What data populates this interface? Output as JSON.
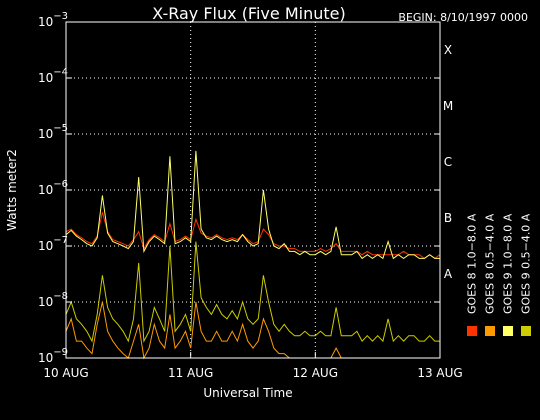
{
  "chart_data": {
    "type": "line",
    "title": "X-Ray Flux (Five Minute)",
    "begin_label": "BEGIN: 8/10/1997 0000",
    "xlabel": "Universal Time",
    "ylabel": "Watts meter2",
    "yscale": "log",
    "ylim": [
      1e-09,
      0.001
    ],
    "xlim_hours": [
      0,
      72
    ],
    "x_ticks": [
      {
        "label": "10 AUG",
        "hour": 0
      },
      {
        "label": "11 AUG",
        "hour": 24
      },
      {
        "label": "12 AUG",
        "hour": 48
      },
      {
        "label": "13 AUG",
        "hour": 72
      }
    ],
    "y_ticks": [
      {
        "base": "10",
        "exp": "−3",
        "value": 0.001
      },
      {
        "base": "10",
        "exp": "−4",
        "value": 0.0001
      },
      {
        "base": "10",
        "exp": "−5",
        "value": 1e-05
      },
      {
        "base": "10",
        "exp": "−6",
        "value": 1e-06
      },
      {
        "base": "10",
        "exp": "−7",
        "value": 1e-07
      },
      {
        "base": "10",
        "exp": "−8",
        "value": 1e-08
      },
      {
        "base": "10",
        "exp": "−9",
        "value": 1e-09
      }
    ],
    "flare_classes": [
      {
        "label": "X",
        "value": 0.0001
      },
      {
        "label": "M",
        "value": 1e-05
      },
      {
        "label": "C",
        "value": 1e-06
      },
      {
        "label": "B",
        "value": 1e-07
      },
      {
        "label": "A",
        "value": 1e-08
      }
    ],
    "grid": "dotted at decades and day boundaries",
    "legend": [
      {
        "label": "GOES 8 1.0−8.0 A",
        "color": "#ff3300"
      },
      {
        "label": "GOES 8 0.5−4.0 A",
        "color": "#ff9900"
      },
      {
        "label": "GOES 9 1.0−8.0 A",
        "color": "#ffff66"
      },
      {
        "label": "GOES 9 0.5−4.0 A",
        "color": "#cccc00"
      }
    ],
    "series": [
      {
        "name": "GOES 8 1.0−8.0 A",
        "color": "#ff3300",
        "x": [
          0,
          1,
          2,
          3,
          4,
          5,
          6,
          7,
          8,
          9,
          10,
          11,
          12,
          13,
          14,
          15,
          16,
          17,
          18,
          19,
          20,
          21,
          22,
          23,
          24,
          25,
          26,
          27,
          28,
          29,
          30,
          31,
          32,
          33,
          34,
          35,
          36,
          37,
          38,
          39,
          40,
          41,
          42,
          43,
          44,
          45,
          46,
          47,
          48,
          49,
          50,
          51,
          52,
          53,
          54,
          55,
          56,
          57,
          58,
          59,
          60,
          61,
          62,
          63,
          64,
          65,
          66,
          67,
          68,
          69,
          70,
          71,
          72
        ],
        "y": [
          1.8e-07,
          2e-07,
          1.6e-07,
          1.4e-07,
          1.2e-07,
          1.1e-07,
          1.5e-07,
          4e-07,
          1.8e-07,
          1.3e-07,
          1.2e-07,
          1.1e-07,
          1e-07,
          1.3e-07,
          1.8e-07,
          9e-08,
          1.3e-07,
          1.6e-07,
          1.4e-07,
          1.2e-07,
          2.5e-07,
          1.2e-07,
          1.3e-07,
          1.5e-07,
          1.3e-07,
          3e-07,
          1.7e-07,
          1.5e-07,
          1.4e-07,
          1.6e-07,
          1.4e-07,
          1.3e-07,
          1.4e-07,
          1.3e-07,
          1.6e-07,
          1.3e-07,
          1.1e-07,
          1.2e-07,
          2e-07,
          1.6e-07,
          1.1e-07,
          1e-07,
          1e-07,
          9e-08,
          9e-08,
          8e-08,
          8e-08,
          8e-08,
          8e-08,
          9e-08,
          8e-08,
          9e-08,
          1.1e-07,
          8e-08,
          8e-08,
          8e-08,
          8e-08,
          7e-08,
          8e-08,
          7e-08,
          7e-08,
          7e-08,
          7e-08,
          7e-08,
          7e-08,
          8e-08,
          7e-08,
          7e-08,
          7e-08,
          6e-08,
          7e-08,
          6e-08,
          7e-08
        ]
      },
      {
        "name": "GOES 8 0.5−4.0 A",
        "color": "#ff9900",
        "x": [
          0,
          1,
          2,
          3,
          4,
          5,
          6,
          7,
          8,
          9,
          10,
          11,
          12,
          13,
          14,
          15,
          16,
          17,
          18,
          19,
          20,
          21,
          22,
          23,
          24,
          25,
          26,
          27,
          28,
          29,
          30,
          31,
          32,
          33,
          34,
          35,
          36,
          37,
          38,
          39,
          40,
          41,
          42,
          43,
          44,
          45,
          46,
          47,
          48,
          49,
          50,
          51,
          52,
          53,
          54,
          55,
          56,
          57,
          58,
          59,
          60,
          61,
          62,
          63,
          64,
          65,
          66,
          67,
          68,
          69,
          70,
          71,
          72
        ],
        "y": [
          3e-09,
          5e-09,
          2e-09,
          2e-09,
          1.5e-09,
          1.2e-09,
          4e-09,
          1e-08,
          3e-09,
          2e-09,
          1.5e-09,
          1.2e-09,
          1e-09,
          2e-09,
          4e-09,
          1e-09,
          1.5e-09,
          4e-09,
          2e-09,
          1.5e-09,
          6e-09,
          1.5e-09,
          2e-09,
          3e-09,
          1.5e-09,
          1e-08,
          3e-09,
          2e-09,
          2e-09,
          3e-09,
          2e-09,
          2e-09,
          3e-09,
          2e-09,
          4e-09,
          2e-09,
          1.5e-09,
          2e-09,
          5e-09,
          3e-09,
          1.5e-09,
          1.2e-09,
          1.2e-09,
          1e-09,
          1e-09,
          1e-09,
          1e-09,
          1e-09,
          1e-09,
          1e-09,
          1e-09,
          1e-09,
          1.5e-09,
          1e-09,
          1e-09,
          1e-09,
          1e-09,
          1e-09,
          1e-09,
          1e-09,
          1e-09,
          1e-09,
          1e-09,
          1e-09,
          1e-09,
          1e-09,
          1e-09,
          1e-09,
          1e-09,
          1e-09,
          1e-09,
          1e-09,
          1e-09
        ]
      },
      {
        "name": "GOES 9 1.0−8.0 A",
        "color": "#ffff66",
        "x": [
          0,
          1,
          2,
          3,
          4,
          5,
          6,
          7,
          8,
          9,
          10,
          11,
          12,
          13,
          14,
          15,
          16,
          17,
          18,
          19,
          20,
          21,
          22,
          23,
          24,
          25,
          26,
          27,
          28,
          29,
          30,
          31,
          32,
          33,
          34,
          35,
          36,
          37,
          38,
          39,
          40,
          41,
          42,
          43,
          44,
          45,
          46,
          47,
          48,
          49,
          50,
          51,
          52,
          53,
          54,
          55,
          56,
          57,
          58,
          59,
          60,
          61,
          62,
          63,
          64,
          65,
          66,
          67,
          68,
          69,
          70,
          71,
          72
        ],
        "y": [
          1.6e-07,
          1.9e-07,
          1.5e-07,
          1.3e-07,
          1.1e-07,
          1e-07,
          1.4e-07,
          8e-07,
          1.7e-07,
          1.2e-07,
          1.1e-07,
          1e-07,
          9e-08,
          1.2e-07,
          1.7e-06,
          8e-08,
          1.2e-07,
          1.5e-07,
          1.3e-07,
          1.1e-07,
          4e-06,
          1.1e-07,
          1.2e-07,
          1.4e-07,
          1.2e-07,
          5e-06,
          2e-07,
          1.4e-07,
          1.3e-07,
          1.5e-07,
          1.3e-07,
          1.2e-07,
          1.3e-07,
          1.2e-07,
          1.6e-07,
          1.2e-07,
          1e-07,
          1.1e-07,
          1e-06,
          2e-07,
          1e-07,
          9e-08,
          1.1e-07,
          8e-08,
          8e-08,
          7e-08,
          8e-08,
          7e-08,
          7e-08,
          8e-08,
          7e-08,
          8e-08,
          2.2e-07,
          7e-08,
          7e-08,
          7e-08,
          8e-08,
          6e-08,
          7e-08,
          6e-08,
          7e-08,
          6e-08,
          1.2e-07,
          6e-08,
          7e-08,
          6e-08,
          7e-08,
          7e-08,
          6e-08,
          6e-08,
          7e-08,
          6e-08,
          6e-08
        ]
      },
      {
        "name": "GOES 9 0.5−4.0 A",
        "color": "#cccc00",
        "x": [
          0,
          1,
          2,
          3,
          4,
          5,
          6,
          7,
          8,
          9,
          10,
          11,
          12,
          13,
          14,
          15,
          16,
          17,
          18,
          19,
          20,
          21,
          22,
          23,
          24,
          25,
          26,
          27,
          28,
          29,
          30,
          31,
          32,
          33,
          34,
          35,
          36,
          37,
          38,
          39,
          40,
          41,
          42,
          43,
          44,
          45,
          46,
          47,
          48,
          49,
          50,
          51,
          52,
          53,
          54,
          55,
          56,
          57,
          58,
          59,
          60,
          61,
          62,
          63,
          64,
          65,
          66,
          67,
          68,
          69,
          70,
          71,
          72
        ],
        "y": [
          6e-09,
          1e-08,
          5e-09,
          4e-09,
          3e-09,
          2e-09,
          6e-09,
          3e-08,
          8e-09,
          5e-09,
          4e-09,
          3e-09,
          2e-09,
          5e-09,
          5e-08,
          2e-09,
          3e-09,
          8e-09,
          5e-09,
          3e-09,
          1e-07,
          3e-09,
          4e-09,
          6e-09,
          3e-09,
          1.2e-07,
          1.2e-08,
          8e-09,
          6e-09,
          9e-09,
          6e-09,
          5e-09,
          7e-09,
          5e-09,
          1e-08,
          5e-09,
          4e-09,
          5e-09,
          3e-08,
          1e-08,
          4e-09,
          3e-09,
          4e-09,
          3e-09,
          2.5e-09,
          2.5e-09,
          3e-09,
          2.5e-09,
          2.5e-09,
          3e-09,
          2.5e-09,
          2.5e-09,
          8e-09,
          2.5e-09,
          2.5e-09,
          2.5e-09,
          3e-09,
          2e-09,
          2.5e-09,
          2e-09,
          2.5e-09,
          2e-09,
          5e-09,
          2e-09,
          2.5e-09,
          2e-09,
          2.5e-09,
          2.5e-09,
          2e-09,
          2e-09,
          2.5e-09,
          2e-09,
          2e-09
        ]
      }
    ]
  }
}
